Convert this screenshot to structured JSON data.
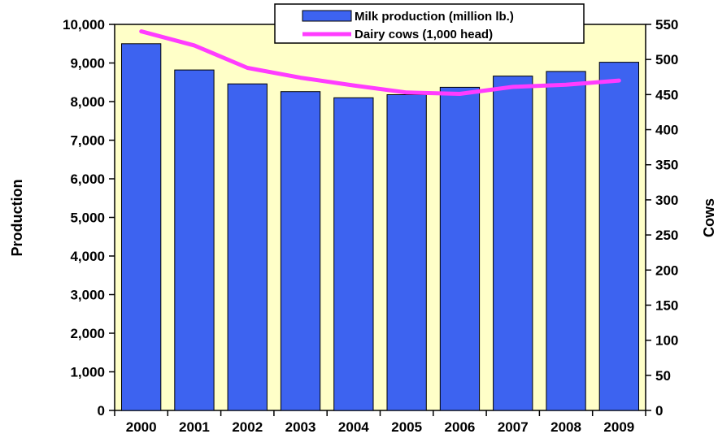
{
  "chart_data": {
    "type": "bar",
    "categories": [
      "2000",
      "2001",
      "2002",
      "2003",
      "2004",
      "2005",
      "2006",
      "2007",
      "2008",
      "2009"
    ],
    "series": [
      {
        "name": "Milk production (million lb.)",
        "type": "bar",
        "axis": "left",
        "color": "#3d63f0",
        "values": [
          9500,
          8820,
          8460,
          8260,
          8100,
          8180,
          8370,
          8660,
          8780,
          9020
        ]
      },
      {
        "name": "Dairy cows (1,000 head)",
        "type": "line",
        "axis": "right",
        "color": "#ff3cff",
        "values": [
          540,
          520,
          488,
          474,
          463,
          453,
          451,
          461,
          464,
          470
        ]
      }
    ],
    "ylabel_left": "Production",
    "ylabel_right": "Cows",
    "ylim_left": [
      0,
      10000
    ],
    "ylim_right": [
      0,
      550
    ],
    "yticks_left": [
      "0",
      "1,000",
      "2,000",
      "3,000",
      "4,000",
      "5,000",
      "6,000",
      "7,000",
      "8,000",
      "9,000",
      "10,000"
    ],
    "yticks_right": [
      "0",
      "50",
      "100",
      "150",
      "200",
      "250",
      "300",
      "350",
      "400",
      "450",
      "500",
      "550"
    ],
    "legend_position": "top-right",
    "plot_background": "#ffffc8",
    "grid": false
  }
}
